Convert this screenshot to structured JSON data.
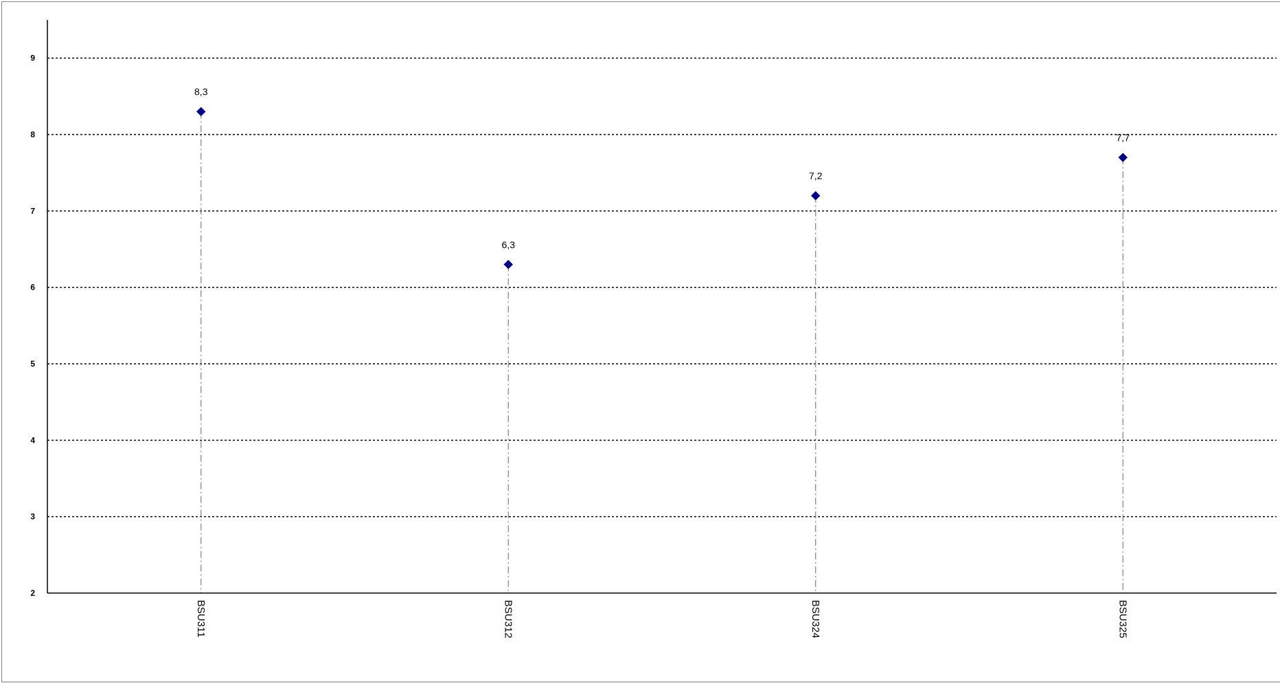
{
  "chart_data": {
    "type": "scatter",
    "title": "",
    "xlabel": "",
    "ylabel": "",
    "categories": [
      "BSU311",
      "BSU312",
      "BSU324",
      "BSU325"
    ],
    "series": [
      {
        "values": [
          8.3,
          6.3,
          7.2,
          7.7
        ],
        "color": "#000080",
        "marker": "diamond"
      }
    ],
    "data_labels": [
      "8,3",
      "6,3",
      "7,2",
      "7,7"
    ],
    "y_ticks": [
      "2",
      "3",
      "4",
      "5",
      "6",
      "7",
      "8",
      "9"
    ],
    "ylim": [
      2,
      9.5
    ],
    "grid": true,
    "grid_style": "dotted-horizontal",
    "drop_lines": true,
    "drop_line_color": "#808080",
    "legend": "none"
  }
}
